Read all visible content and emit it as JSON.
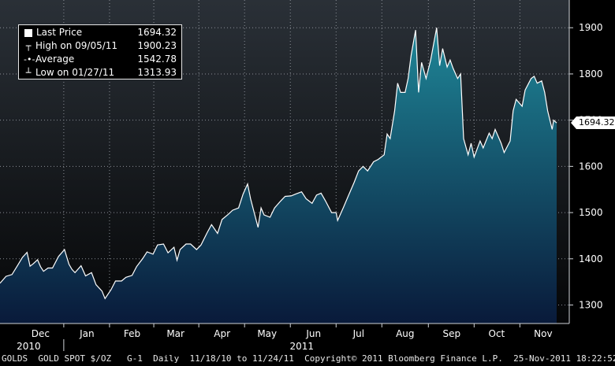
{
  "legend": {
    "last_price_label": "Last Price",
    "last_price_value": "1694.32",
    "high_label": "High on 09/05/11",
    "high_value": "1900.23",
    "average_label": "Average",
    "average_value": "1542.78",
    "low_label": "Low on 01/27/11",
    "low_value": "1313.93"
  },
  "last_price_tag": "1694.32",
  "footer": {
    "ticker": "GOLDS",
    "name": "GOLD SPOT $/OZ",
    "chart_id": "G-1",
    "frequency": "Daily",
    "range": "11/18/10 to 11/24/11",
    "copyright": "Copyright© 2011 Bloomberg Finance L.P.",
    "timestamp": "25-Nov-2011 18:22:52"
  },
  "colors": {
    "line": "#ffffff",
    "fill_top": "#1f8798",
    "fill_bottom": "#091a3a",
    "background_top": "#2a3037",
    "background_bottom": "#050607"
  },
  "chart_data": {
    "type": "area",
    "title": "",
    "xlabel": "",
    "ylabel": "",
    "x_range": [
      "2010-11-18",
      "2011-11-24"
    ],
    "ylim": [
      1260,
      1960
    ],
    "y_ticks": [
      1300,
      1400,
      1500,
      1600,
      1700,
      1800,
      1900
    ],
    "month_ticks": [
      {
        "label": "Dec",
        "date": "2010-12-15"
      },
      {
        "label": "Jan",
        "date": "2011-01-15"
      },
      {
        "label": "Feb",
        "date": "2011-02-14"
      },
      {
        "label": "Mar",
        "date": "2011-03-15"
      },
      {
        "label": "Apr",
        "date": "2011-04-15"
      },
      {
        "label": "May",
        "date": "2011-05-15"
      },
      {
        "label": "Jun",
        "date": "2011-06-15"
      },
      {
        "label": "Jul",
        "date": "2011-07-15"
      },
      {
        "label": "Aug",
        "date": "2011-08-15"
      },
      {
        "label": "Sep",
        "date": "2011-09-15"
      },
      {
        "label": "Oct",
        "date": "2011-10-15"
      },
      {
        "label": "Nov",
        "date": "2011-11-15"
      }
    ],
    "year_labels": [
      {
        "label": "2010",
        "date": "2010-12-15"
      },
      {
        "label": "2011",
        "date": "2011-06-15"
      }
    ],
    "grid": true,
    "y_axis_side": "right",
    "legend_position": "top-left",
    "series": [
      {
        "name": "Last Price",
        "points": [
          [
            "2010-11-18",
            1347
          ],
          [
            "2010-11-22",
            1362
          ],
          [
            "2010-11-26",
            1366
          ],
          [
            "2010-11-30",
            1387
          ],
          [
            "2010-12-03",
            1403
          ],
          [
            "2010-12-06",
            1414
          ],
          [
            "2010-12-08",
            1384
          ],
          [
            "2010-12-10",
            1389
          ],
          [
            "2010-12-13",
            1398
          ],
          [
            "2010-12-15",
            1383
          ],
          [
            "2010-12-17",
            1373
          ],
          [
            "2010-12-20",
            1380
          ],
          [
            "2010-12-23",
            1380
          ],
          [
            "2010-12-27",
            1405
          ],
          [
            "2010-12-31",
            1420
          ],
          [
            "2011-01-03",
            1388
          ],
          [
            "2011-01-05",
            1377
          ],
          [
            "2011-01-07",
            1370
          ],
          [
            "2011-01-11",
            1385
          ],
          [
            "2011-01-14",
            1363
          ],
          [
            "2011-01-18",
            1370
          ],
          [
            "2011-01-21",
            1344
          ],
          [
            "2011-01-25",
            1330
          ],
          [
            "2011-01-27",
            1314
          ],
          [
            "2011-01-31",
            1333
          ],
          [
            "2011-02-03",
            1352
          ],
          [
            "2011-02-07",
            1352
          ],
          [
            "2011-02-10",
            1360
          ],
          [
            "2011-02-14",
            1364
          ],
          [
            "2011-02-17",
            1383
          ],
          [
            "2011-02-21",
            1400
          ],
          [
            "2011-02-24",
            1415
          ],
          [
            "2011-02-28",
            1410
          ],
          [
            "2011-03-03",
            1430
          ],
          [
            "2011-03-07",
            1432
          ],
          [
            "2011-03-10",
            1413
          ],
          [
            "2011-03-14",
            1425
          ],
          [
            "2011-03-16",
            1397
          ],
          [
            "2011-03-18",
            1420
          ],
          [
            "2011-03-22",
            1432
          ],
          [
            "2011-03-25",
            1432
          ],
          [
            "2011-03-29",
            1420
          ],
          [
            "2011-04-01",
            1430
          ],
          [
            "2011-04-05",
            1456
          ],
          [
            "2011-04-08",
            1474
          ],
          [
            "2011-04-12",
            1455
          ],
          [
            "2011-04-15",
            1485
          ],
          [
            "2011-04-19",
            1496
          ],
          [
            "2011-04-22",
            1505
          ],
          [
            "2011-04-26",
            1510
          ],
          [
            "2011-04-29",
            1540
          ],
          [
            "2011-05-02",
            1562
          ],
          [
            "2011-05-04",
            1530
          ],
          [
            "2011-05-06",
            1505
          ],
          [
            "2011-05-09",
            1468
          ],
          [
            "2011-05-11",
            1510
          ],
          [
            "2011-05-13",
            1495
          ],
          [
            "2011-05-17",
            1490
          ],
          [
            "2011-05-20",
            1510
          ],
          [
            "2011-05-24",
            1525
          ],
          [
            "2011-05-27",
            1535
          ],
          [
            "2011-05-31",
            1536
          ],
          [
            "2011-06-03",
            1540
          ],
          [
            "2011-06-07",
            1545
          ],
          [
            "2011-06-10",
            1530
          ],
          [
            "2011-06-14",
            1520
          ],
          [
            "2011-06-17",
            1538
          ],
          [
            "2011-06-20",
            1542
          ],
          [
            "2011-06-23",
            1525
          ],
          [
            "2011-06-27",
            1500
          ],
          [
            "2011-06-30",
            1500
          ],
          [
            "2011-07-01",
            1483
          ],
          [
            "2011-07-05",
            1512
          ],
          [
            "2011-07-08",
            1535
          ],
          [
            "2011-07-12",
            1565
          ],
          [
            "2011-07-15",
            1590
          ],
          [
            "2011-07-18",
            1600
          ],
          [
            "2011-07-21",
            1590
          ],
          [
            "2011-07-25",
            1610
          ],
          [
            "2011-07-28",
            1615
          ],
          [
            "2011-08-01",
            1625
          ],
          [
            "2011-08-03",
            1670
          ],
          [
            "2011-08-05",
            1660
          ],
          [
            "2011-08-08",
            1720
          ],
          [
            "2011-08-10",
            1780
          ],
          [
            "2011-08-12",
            1760
          ],
          [
            "2011-08-15",
            1760
          ],
          [
            "2011-08-17",
            1790
          ],
          [
            "2011-08-19",
            1840
          ],
          [
            "2011-08-22",
            1895
          ],
          [
            "2011-08-24",
            1760
          ],
          [
            "2011-08-26",
            1825
          ],
          [
            "2011-08-29",
            1790
          ],
          [
            "2011-09-01",
            1830
          ],
          [
            "2011-09-05",
            1900
          ],
          [
            "2011-09-07",
            1818
          ],
          [
            "2011-09-09",
            1855
          ],
          [
            "2011-09-12",
            1815
          ],
          [
            "2011-09-14",
            1830
          ],
          [
            "2011-09-16",
            1812
          ],
          [
            "2011-09-19",
            1790
          ],
          [
            "2011-09-21",
            1800
          ],
          [
            "2011-09-23",
            1660
          ],
          [
            "2011-09-26",
            1625
          ],
          [
            "2011-09-28",
            1650
          ],
          [
            "2011-09-30",
            1620
          ],
          [
            "2011-10-04",
            1655
          ],
          [
            "2011-10-06",
            1640
          ],
          [
            "2011-10-10",
            1672
          ],
          [
            "2011-10-12",
            1660
          ],
          [
            "2011-10-14",
            1680
          ],
          [
            "2011-10-18",
            1650
          ],
          [
            "2011-10-20",
            1630
          ],
          [
            "2011-10-24",
            1655
          ],
          [
            "2011-10-26",
            1720
          ],
          [
            "2011-10-28",
            1745
          ],
          [
            "2011-11-01",
            1730
          ],
          [
            "2011-11-03",
            1765
          ],
          [
            "2011-11-07",
            1790
          ],
          [
            "2011-11-09",
            1795
          ],
          [
            "2011-11-11",
            1780
          ],
          [
            "2011-11-14",
            1785
          ],
          [
            "2011-11-16",
            1760
          ],
          [
            "2011-11-18",
            1720
          ],
          [
            "2011-11-21",
            1680
          ],
          [
            "2011-11-22",
            1700
          ],
          [
            "2011-11-24",
            1694
          ]
        ]
      }
    ],
    "average": 1542.78,
    "high": {
      "date": "2011-09-05",
      "value": 1900.23
    },
    "low": {
      "date": "2011-01-27",
      "value": 1313.93
    },
    "last": 1694.32
  }
}
